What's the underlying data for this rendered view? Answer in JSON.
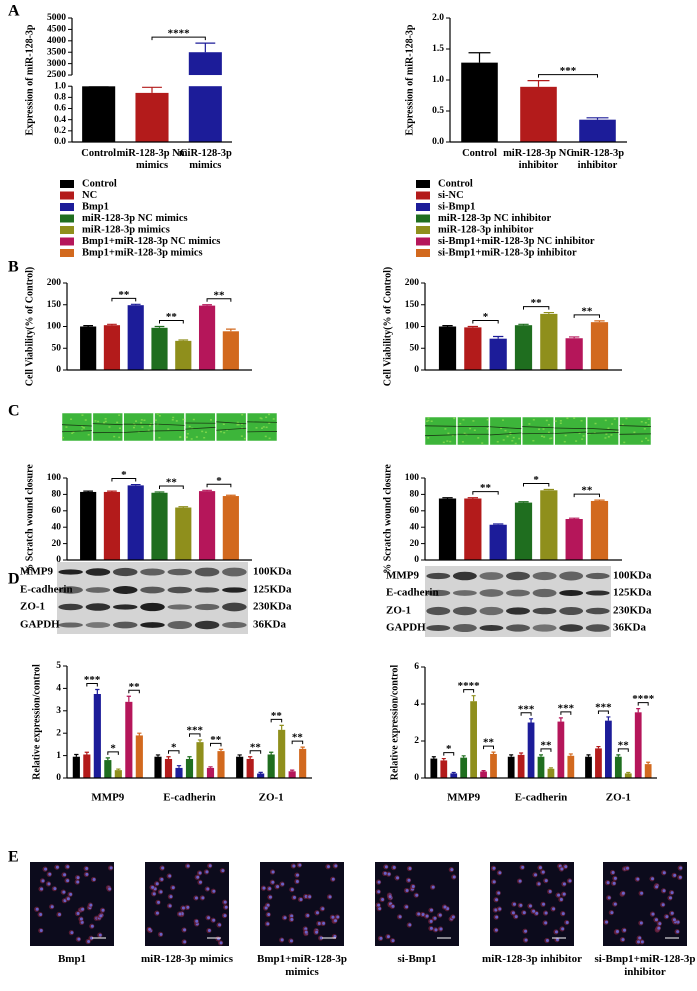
{
  "panel_labels": [
    "A",
    "B",
    "C",
    "D",
    "E"
  ],
  "chart_data": [
    {
      "type": "bar",
      "y_label": "Expression of miR-128-3p",
      "categories": [
        "Control",
        "miR-128-3p NC mimics",
        "miR-128-3p mimics"
      ],
      "values": [
        1,
        0.88,
        3500
      ],
      "errors": [
        0,
        0.1,
        400
      ],
      "colors": [
        "#000000",
        "#b31b1b",
        "#1c1c99"
      ],
      "ylim": [
        0,
        5000
      ],
      "axis_break": [
        1,
        2500
      ],
      "yticks": [
        {
          "value": 0,
          "label": "0.0"
        },
        0.2,
        0.4,
        0.6,
        0.8,
        {
          "value": 1,
          "label": "1.0"
        },
        2500,
        3000,
        3500,
        4000,
        4500,
        5000
      ],
      "annotations": [
        {
          "text": "****",
          "from": 1,
          "to": 2
        }
      ]
    },
    {
      "type": "bar",
      "y_label": "Expression of miR-128-3p",
      "categories": [
        "Control",
        "miR-128-3p NC inhibitor",
        "miR-128-3p inhibitor"
      ],
      "values": [
        1.28,
        0.89,
        0.36
      ],
      "errors": [
        0.16,
        0.1,
        0.03
      ],
      "colors": [
        "#000000",
        "#b31b1b",
        "#1c1c99"
      ],
      "ylim": [
        0,
        2
      ],
      "yticks": [
        {
          "value": 0,
          "label": "0.0"
        },
        0.5,
        {
          "value": 1,
          "label": "1.0"
        },
        1.5,
        {
          "value": 2,
          "label": "2.0"
        }
      ],
      "annotations": [
        {
          "text": "***",
          "from": 1,
          "to": 2
        }
      ]
    },
    {
      "type": "bar",
      "legend": "above",
      "y_label": "Cell Viability(% of Control)",
      "categories": [
        null
      ],
      "series": [
        {
          "name": "Control",
          "color": "#000000",
          "values": [
            100
          ],
          "errors": [
            2
          ]
        },
        {
          "name": "NC",
          "color": "#b31b1b",
          "values": [
            103
          ],
          "errors": [
            2
          ]
        },
        {
          "name": "Bmp1",
          "color": "#1c1c99",
          "values": [
            149
          ],
          "errors": [
            2
          ]
        },
        {
          "name": "miR-128-3p NC mimics",
          "color": "#1f6e1f",
          "values": [
            97
          ],
          "errors": [
            3
          ]
        },
        {
          "name": "miR-128-3p mimics",
          "color": "#8f8f1c",
          "values": [
            67
          ],
          "errors": [
            2
          ]
        },
        {
          "name": "Bmp1+miR-128-3p NC mimics",
          "color": "#b5165a",
          "values": [
            148
          ],
          "errors": [
            2
          ]
        },
        {
          "name": "Bmp1+miR-128-3p mimics",
          "color": "#d2691e",
          "values": [
            89
          ],
          "errors": [
            5
          ]
        }
      ],
      "ylim": [
        0,
        200
      ],
      "yticks": [
        0,
        50,
        100,
        150,
        200
      ],
      "annotations": [
        {
          "text": "**",
          "from": 1,
          "to": 2
        },
        {
          "text": "**",
          "from": 3,
          "to": 4
        },
        {
          "text": "**",
          "from": 5,
          "to": 6
        }
      ]
    },
    {
      "type": "bar",
      "legend": "above",
      "y_label": "Cell Viability(% of Control)",
      "categories": [
        null
      ],
      "series": [
        {
          "name": "Control",
          "color": "#000000",
          "values": [
            100
          ],
          "errors": [
            2
          ]
        },
        {
          "name": "si-NC",
          "color": "#b31b1b",
          "values": [
            98
          ],
          "errors": [
            2
          ]
        },
        {
          "name": "si-Bmp1",
          "color": "#1c1c99",
          "values": [
            72
          ],
          "errors": [
            5
          ]
        },
        {
          "name": "miR-128-3p NC inhibitor",
          "color": "#1f6e1f",
          "values": [
            103
          ],
          "errors": [
            2
          ]
        },
        {
          "name": "miR-128-3p inhibitor",
          "color": "#8f8f1c",
          "values": [
            129
          ],
          "errors": [
            3
          ]
        },
        {
          "name": "si-Bmp1+miR-128-3p NC inhibitor",
          "color": "#b5165a",
          "values": [
            73
          ],
          "errors": [
            3
          ]
        },
        {
          "name": "si-Bmp1+miR-128-3p inhibitor",
          "color": "#d2691e",
          "values": [
            110
          ],
          "errors": [
            3
          ]
        }
      ],
      "ylim": [
        0,
        200
      ],
      "yticks": [
        0,
        50,
        100,
        150,
        200
      ],
      "annotations": [
        {
          "text": "*",
          "from": 1,
          "to": 2
        },
        {
          "text": "**",
          "from": 3,
          "to": 4
        },
        {
          "text": "**",
          "from": 5,
          "to": 6
        }
      ]
    },
    {
      "type": "bar",
      "y_label": "% Scratch wound closure",
      "categories": [
        null
      ],
      "series": [
        {
          "color": "#000000",
          "values": [
            83
          ],
          "errors": [
            1
          ]
        },
        {
          "color": "#b31b1b",
          "values": [
            83
          ],
          "errors": [
            1
          ]
        },
        {
          "color": "#1c1c99",
          "values": [
            91
          ],
          "errors": [
            1
          ]
        },
        {
          "color": "#1f6e1f",
          "values": [
            82
          ],
          "errors": [
            1
          ]
        },
        {
          "color": "#8f8f1c",
          "values": [
            64
          ],
          "errors": [
            1
          ]
        },
        {
          "color": "#b5165a",
          "values": [
            84
          ],
          "errors": [
            1
          ]
        },
        {
          "color": "#d2691e",
          "values": [
            78
          ],
          "errors": [
            1
          ]
        }
      ],
      "ylim": [
        0,
        100
      ],
      "yticks": [
        0,
        20,
        40,
        60,
        80,
        100
      ],
      "annotations": [
        {
          "text": "*",
          "from": 1,
          "to": 2
        },
        {
          "text": "**",
          "from": 3,
          "to": 4
        },
        {
          "text": "*",
          "from": 5,
          "to": 6
        }
      ]
    },
    {
      "type": "bar",
      "y_label": "% Scratch wound closure",
      "categories": [
        null
      ],
      "series": [
        {
          "color": "#000000",
          "values": [
            75
          ],
          "errors": [
            1
          ]
        },
        {
          "color": "#b31b1b",
          "values": [
            75
          ],
          "errors": [
            1
          ]
        },
        {
          "color": "#1c1c99",
          "values": [
            43
          ],
          "errors": [
            1
          ]
        },
        {
          "color": "#1f6e1f",
          "values": [
            70
          ],
          "errors": [
            1
          ]
        },
        {
          "color": "#8f8f1c",
          "values": [
            85
          ],
          "errors": [
            1
          ]
        },
        {
          "color": "#b5165a",
          "values": [
            50
          ],
          "errors": [
            1
          ]
        },
        {
          "color": "#d2691e",
          "values": [
            72
          ],
          "errors": [
            1
          ]
        }
      ],
      "ylim": [
        0,
        100
      ],
      "yticks": [
        0,
        20,
        40,
        60,
        80,
        100
      ],
      "annotations": [
        {
          "text": "**",
          "from": 1,
          "to": 2
        },
        {
          "text": "*",
          "from": 3,
          "to": 4
        },
        {
          "text": "**",
          "from": 5,
          "to": 6
        }
      ]
    },
    {
      "type": "bar",
      "y_label": "Relative expression/control",
      "categories": [
        "MMP9",
        "E-cadherin",
        "ZO-1"
      ],
      "series": [
        {
          "color": "#000000",
          "values": [
            0.95,
            0.95,
            0.95
          ],
          "errors": [
            0.1,
            0.08,
            0.08
          ]
        },
        {
          "color": "#b31b1b",
          "values": [
            1.05,
            0.85,
            0.85
          ],
          "errors": [
            0.1,
            0.1,
            0.1
          ]
        },
        {
          "color": "#1c1c99",
          "values": [
            3.75,
            0.45,
            0.2
          ],
          "errors": [
            0.2,
            0.1,
            0.05
          ]
        },
        {
          "color": "#1f6e1f",
          "values": [
            0.8,
            0.85,
            1.05
          ],
          "errors": [
            0.1,
            0.1,
            0.1
          ]
        },
        {
          "color": "#8f8f1c",
          "values": [
            0.35,
            1.6,
            2.15
          ],
          "errors": [
            0.05,
            0.1,
            0.2
          ]
        },
        {
          "color": "#b5165a",
          "values": [
            3.4,
            0.45,
            0.3
          ],
          "errors": [
            0.25,
            0.05,
            0.05
          ]
        },
        {
          "color": "#d2691e",
          "values": [
            1.9,
            1.2,
            1.3
          ],
          "errors": [
            0.1,
            0.08,
            0.08
          ]
        }
      ],
      "ylim": [
        0,
        5
      ],
      "yticks": [
        0,
        1,
        2,
        3,
        4,
        5
      ],
      "annotations": [
        {
          "text": "***",
          "category": 0,
          "from": 1,
          "to": 2
        },
        {
          "text": "*",
          "category": 0,
          "from": 3,
          "to": 4
        },
        {
          "text": "**",
          "category": 0,
          "from": 5,
          "to": 6
        },
        {
          "text": "*",
          "category": 1,
          "from": 1,
          "to": 2
        },
        {
          "text": "***",
          "category": 1,
          "from": 3,
          "to": 4
        },
        {
          "text": "**",
          "category": 1,
          "from": 5,
          "to": 6
        },
        {
          "text": "**",
          "category": 2,
          "from": 1,
          "to": 2
        },
        {
          "text": "**",
          "category": 2,
          "from": 3,
          "to": 4
        },
        {
          "text": "**",
          "category": 2,
          "from": 5,
          "to": 6
        }
      ]
    },
    {
      "type": "bar",
      "y_label": "Relative expression/control",
      "categories": [
        "MMP9",
        "E-cadherin",
        "ZO-1"
      ],
      "series": [
        {
          "color": "#000000",
          "values": [
            1.05,
            1.15,
            1.15
          ],
          "errors": [
            0.1,
            0.1,
            0.1
          ]
        },
        {
          "color": "#b31b1b",
          "values": [
            0.95,
            1.25,
            1.6
          ],
          "errors": [
            0.1,
            0.1,
            0.1
          ]
        },
        {
          "color": "#1c1c99",
          "values": [
            0.25,
            3.0,
            3.1
          ],
          "errors": [
            0.05,
            0.2,
            0.2
          ]
        },
        {
          "color": "#1f6e1f",
          "values": [
            1.1,
            1.15,
            1.15
          ],
          "errors": [
            0.1,
            0.1,
            0.1
          ]
        },
        {
          "color": "#8f8f1c",
          "values": [
            4.15,
            0.5,
            0.25
          ],
          "errors": [
            0.3,
            0.05,
            0.05
          ]
        },
        {
          "color": "#b5165a",
          "values": [
            0.35,
            3.05,
            3.55
          ],
          "errors": [
            0.05,
            0.2,
            0.2
          ]
        },
        {
          "color": "#d2691e",
          "values": [
            1.3,
            1.2,
            0.75
          ],
          "errors": [
            0.1,
            0.1,
            0.1
          ]
        }
      ],
      "ylim": [
        0,
        6
      ],
      "yticks": [
        0,
        2,
        4,
        6
      ],
      "annotations": [
        {
          "text": "*",
          "category": 0,
          "from": 1,
          "to": 2
        },
        {
          "text": "****",
          "category": 0,
          "from": 3,
          "to": 4
        },
        {
          "text": "**",
          "category": 0,
          "from": 5,
          "to": 6
        },
        {
          "text": "***",
          "category": 1,
          "from": 1,
          "to": 2
        },
        {
          "text": "**",
          "category": 1,
          "from": 3,
          "to": 4
        },
        {
          "text": "***",
          "category": 1,
          "from": 5,
          "to": 6
        },
        {
          "text": "***",
          "category": 2,
          "from": 1,
          "to": 2
        },
        {
          "text": "**",
          "category": 2,
          "from": 3,
          "to": 4
        },
        {
          "text": "****",
          "category": 2,
          "from": 5,
          "to": 6
        }
      ]
    }
  ],
  "blots": [
    {
      "proteins": [
        "MMP9",
        "E-cadherin",
        "ZO-1",
        "GAPDH"
      ],
      "sizes": [
        "100KDa",
        "125KDa",
        "230KDa",
        "36KDa"
      ]
    },
    {
      "proteins": [
        "MMP9",
        "E-cadherin",
        "ZO-1",
        "GAPDH"
      ],
      "sizes": [
        "100KDa",
        "125KDa",
        "230KDa",
        "36KDa"
      ]
    }
  ],
  "images_e": {
    "captions": [
      "Bmp1",
      "miR-128-3p mimics",
      "Bmp1+miR-128-3p mimics",
      "si-Bmp1",
      "miR-128-3p inhibitor",
      "si-Bmp1+miR-128-3p inhibitor"
    ]
  }
}
